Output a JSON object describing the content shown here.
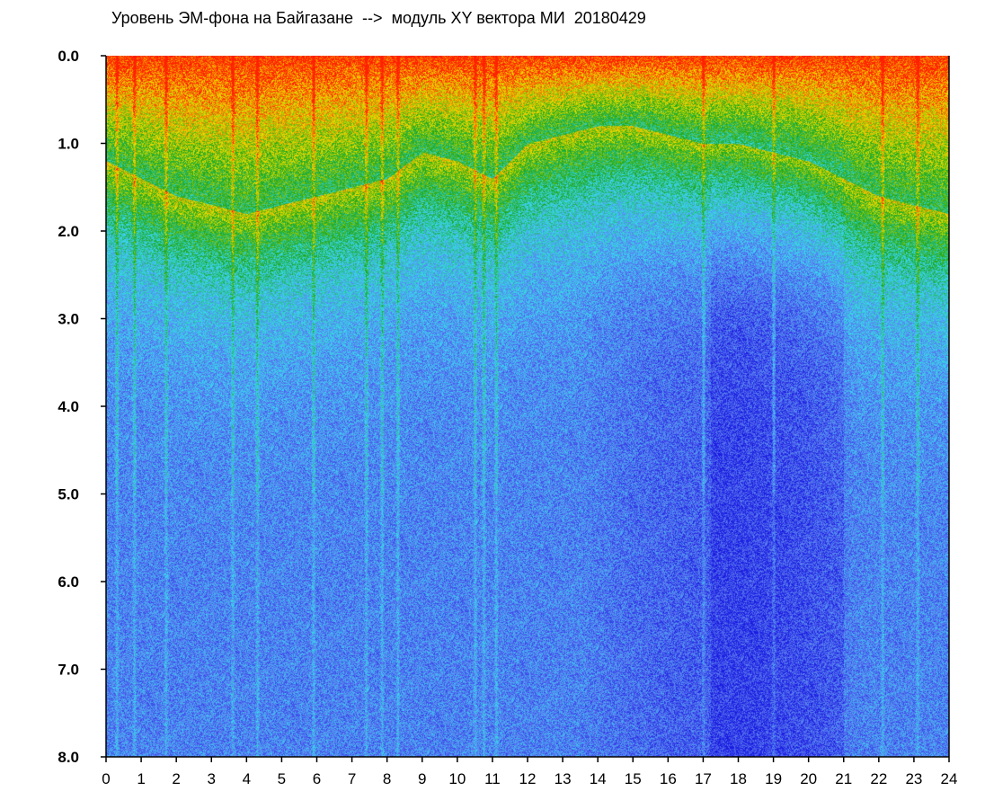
{
  "chart_data": {
    "type": "heatmap",
    "title": "Уровень ЭМ-фона на Байгазане  -->  модуль XY вектора МИ  20180429",
    "xlabel": "",
    "ylabel": "",
    "x_ticks": [
      "0",
      "1",
      "2",
      "3",
      "4",
      "5",
      "6",
      "7",
      "8",
      "9",
      "10",
      "11",
      "12",
      "13",
      "14",
      "15",
      "16",
      "17",
      "18",
      "19",
      "20",
      "21",
      "22",
      "23",
      "24"
    ],
    "y_ticks": [
      "0.0",
      "1.0",
      "2.0",
      "3.0",
      "4.0",
      "5.0",
      "6.0",
      "7.0",
      "8.0"
    ],
    "xlim": [
      0,
      24
    ],
    "ylim": [
      0,
      8
    ],
    "y_inverted": true,
    "grid": false,
    "legend": "none",
    "colormap": [
      "#1a1ae0",
      "#5a78f0",
      "#3ad8f0",
      "#1aa61a",
      "#f0e000",
      "#ff2000"
    ],
    "intensity_profile": {
      "hours": [
        0,
        2,
        4,
        6,
        8,
        9,
        10,
        11,
        12,
        14,
        15,
        16,
        17,
        18,
        19,
        20,
        21,
        22,
        23,
        24
      ],
      "hot_zone_depth": [
        1.2,
        1.6,
        1.8,
        1.6,
        1.4,
        1.1,
        1.2,
        1.4,
        1.0,
        0.8,
        0.8,
        0.9,
        1.0,
        1.0,
        1.1,
        1.2,
        1.4,
        1.6,
        1.7,
        1.8
      ]
    },
    "bright_streak_hours": [
      0.3,
      0.8,
      1.7,
      3.6,
      4.3,
      5.9,
      7.4,
      7.85,
      8.3,
      10.5,
      10.75,
      11.1,
      17.0,
      19.0,
      22.1,
      23.1
    ]
  }
}
